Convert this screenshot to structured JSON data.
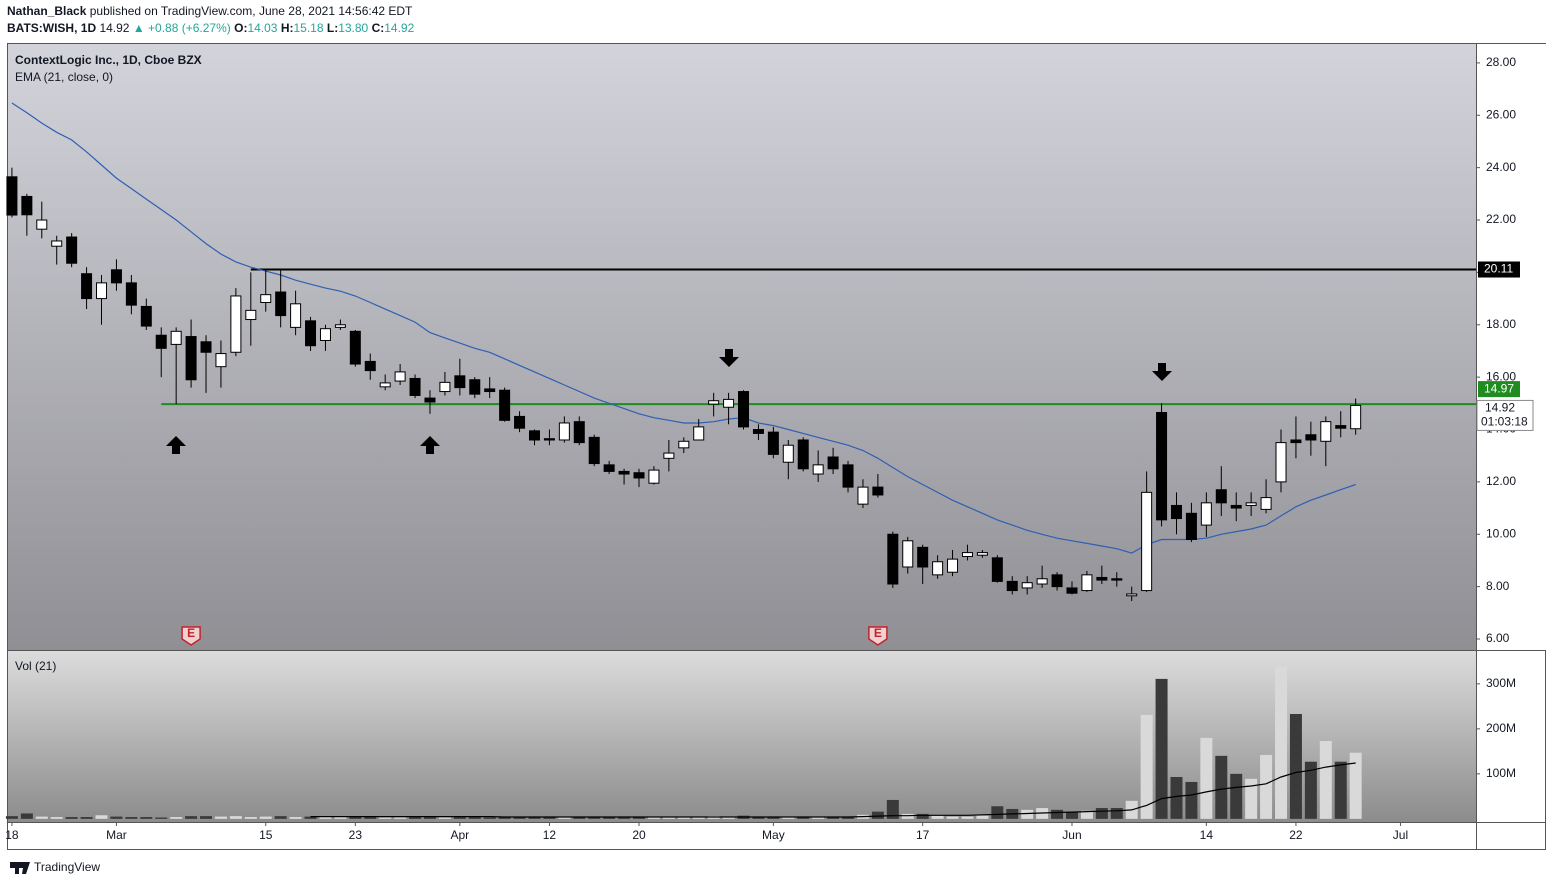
{
  "header": {
    "publisher": "Nathan_Black",
    "published": "published on TradingView.com, June 28, 2021 14:56:42 EDT",
    "symbol": "BATS:WISH, 1D",
    "last": "14.92",
    "change": "▲ +0.88 (+6.27%)",
    "ohlc": [
      {
        "label": "O:",
        "value": "14.03"
      },
      {
        "label": "H:",
        "value": "15.18"
      },
      {
        "label": "L:",
        "value": "13.80"
      },
      {
        "label": "C:",
        "value": "14.92"
      }
    ]
  },
  "chart_data": {
    "type": "candlestick",
    "title": "ContextLogic Inc., 1D, Cboe BZX",
    "indicator": "EMA (21, close, 0)",
    "volume_title": "Vol (21)",
    "xlim": [
      -0.33,
      98.06
    ],
    "xticks": [
      {
        "value": 0,
        "label": "18"
      },
      {
        "value": 7,
        "label": "Mar"
      },
      {
        "value": 17,
        "label": "15"
      },
      {
        "value": 23,
        "label": "23"
      },
      {
        "value": 30,
        "label": "Apr"
      },
      {
        "value": 36,
        "label": "12"
      },
      {
        "value": 42,
        "label": "20"
      },
      {
        "value": 51,
        "label": "May"
      },
      {
        "value": 61,
        "label": "17"
      },
      {
        "value": 71,
        "label": "Jun"
      },
      {
        "value": 80,
        "label": "14"
      },
      {
        "value": 86,
        "label": "22"
      },
      {
        "value": 93,
        "label": "Jul"
      }
    ],
    "ylim": [
      5.58,
      28.76
    ],
    "yticks": [
      {
        "value": 6,
        "label": "6.00"
      },
      {
        "value": 8,
        "label": "8.00"
      },
      {
        "value": 10,
        "label": "10.00"
      },
      {
        "value": 12,
        "label": "12.00"
      },
      {
        "value": 14,
        "label": "14.00"
      },
      {
        "value": 16,
        "label": "16.00"
      },
      {
        "value": 18,
        "label": "18.00"
      },
      {
        "value": 20,
        "label": "20.00"
      },
      {
        "value": 22,
        "label": "22.00"
      },
      {
        "value": 24,
        "label": "24.00"
      },
      {
        "value": 26,
        "label": "26.00"
      },
      {
        "value": 28,
        "label": "28.00"
      }
    ],
    "vlim": [
      -7,
      373
    ],
    "vticks": [
      {
        "value": 100,
        "label": "100M"
      },
      {
        "value": 200,
        "label": "200M"
      },
      {
        "value": 300,
        "label": "300M"
      }
    ],
    "open": [
      23.65,
      22.9,
      21.65,
      21.0,
      21.35,
      19.95,
      19.0,
      20.1,
      19.6,
      18.7,
      17.6,
      17.25,
      17.55,
      17.35,
      16.4,
      16.95,
      18.2,
      18.85,
      19.25,
      17.9,
      18.15,
      17.4,
      17.9,
      17.75,
      16.6,
      15.63,
      15.85,
      15.95,
      15.2,
      15.45,
      16.05,
      15.9,
      15.55,
      15.5,
      14.5,
      13.95,
      13.65,
      13.6,
      14.3,
      13.7,
      12.65,
      12.4,
      12.35,
      11.95,
      12.9,
      13.3,
      13.6,
      14.97,
      14.85,
      15.45,
      14.0,
      13.9,
      12.75,
      13.6,
      12.3,
      12.95,
      12.65,
      11.15,
      11.8,
      10.0,
      8.75,
      9.5,
      8.45,
      8.55,
      9.15,
      9.2,
      9.1,
      8.2,
      7.95,
      8.1,
      8.45,
      7.95,
      7.85,
      8.35,
      8.3,
      7.65,
      7.85,
      14.65,
      11.1,
      10.8,
      10.35,
      11.7,
      11.1,
      11.1,
      10.95,
      12.0,
      13.6,
      13.8,
      13.55,
      14.15,
      14.03
    ],
    "high": [
      24.0,
      23.0,
      22.7,
      21.4,
      21.5,
      20.2,
      19.9,
      20.5,
      19.9,
      19.0,
      17.9,
      17.9,
      18.2,
      17.6,
      17.4,
      19.4,
      20.0,
      20.1,
      20.1,
      19.3,
      18.3,
      18.0,
      18.2,
      17.8,
      16.9,
      16.1,
      16.5,
      16.1,
      15.5,
      16.2,
      16.7,
      16.0,
      16.0,
      15.6,
      14.7,
      14.0,
      14.0,
      14.5,
      14.5,
      13.8,
      12.8,
      12.5,
      12.5,
      12.6,
      13.6,
      13.7,
      14.4,
      15.4,
      15.4,
      15.5,
      14.2,
      14.1,
      13.6,
      13.7,
      13.2,
      13.3,
      12.8,
      12.1,
      12.3,
      10.1,
      9.9,
      9.6,
      9.2,
      9.4,
      9.6,
      9.4,
      9.2,
      8.4,
      8.4,
      8.8,
      8.55,
      8.2,
      8.6,
      8.8,
      8.55,
      8.0,
      12.4,
      15.0,
      11.6,
      11.2,
      11.6,
      12.6,
      11.6,
      11.6,
      12.1,
      14.0,
      14.5,
      14.3,
      14.5,
      14.7,
      15.18
    ],
    "low": [
      22.1,
      21.4,
      21.3,
      20.3,
      20.2,
      18.6,
      18.0,
      19.3,
      18.4,
      17.8,
      16.0,
      14.97,
      15.6,
      15.4,
      15.6,
      16.8,
      17.2,
      18.5,
      17.9,
      17.6,
      17.0,
      17.0,
      17.8,
      16.4,
      15.9,
      15.5,
      15.7,
      15.2,
      14.6,
      15.3,
      15.3,
      15.2,
      15.2,
      14.3,
      13.9,
      13.4,
      13.4,
      13.5,
      13.4,
      12.6,
      12.3,
      11.9,
      11.8,
      11.9,
      12.4,
      13.1,
      13.6,
      14.5,
      14.2,
      14.0,
      13.6,
      12.9,
      12.1,
      12.4,
      12.0,
      12.3,
      11.6,
      11.0,
      11.4,
      7.95,
      8.5,
      8.1,
      8.3,
      8.4,
      9.0,
      9.1,
      8.15,
      7.7,
      7.7,
      7.95,
      7.85,
      7.7,
      7.8,
      8.1,
      8.0,
      7.45,
      7.8,
      10.3,
      10.0,
      9.7,
      9.9,
      10.7,
      10.5,
      10.7,
      10.8,
      11.6,
      12.9,
      13.0,
      12.6,
      13.7,
      13.8
    ],
    "close": [
      22.19,
      22.2,
      22.0,
      21.2,
      20.35,
      19.0,
      19.6,
      19.6,
      18.75,
      17.95,
      17.1,
      17.75,
      15.9,
      16.95,
      16.9,
      19.1,
      18.55,
      19.15,
      18.35,
      18.8,
      17.2,
      17.85,
      18.0,
      16.5,
      16.25,
      15.78,
      16.2,
      15.3,
      15.05,
      15.8,
      15.6,
      15.35,
      15.45,
      14.35,
      14.05,
      13.6,
      13.6,
      14.25,
      13.5,
      12.7,
      12.4,
      12.3,
      12.15,
      12.45,
      13.1,
      13.55,
      14.1,
      15.1,
      15.15,
      14.1,
      13.85,
      13.05,
      13.4,
      12.5,
      12.65,
      12.5,
      11.8,
      11.8,
      11.5,
      8.1,
      9.75,
      8.75,
      8.95,
      9.05,
      9.3,
      9.3,
      8.2,
      7.85,
      8.15,
      8.3,
      8.0,
      7.75,
      8.45,
      8.25,
      8.25,
      7.72,
      11.6,
      10.55,
      10.6,
      9.8,
      11.2,
      11.2,
      11.0,
      11.2,
      11.4,
      13.5,
      13.5,
      13.6,
      14.3,
      14.05,
      14.92
    ],
    "ema": [
      26.47,
      26.1,
      25.7,
      25.35,
      25.06,
      24.6,
      24.1,
      23.6,
      23.2,
      22.8,
      22.4,
      22.0,
      21.55,
      21.1,
      20.7,
      20.4,
      20.2,
      20.05,
      19.9,
      19.7,
      19.55,
      19.4,
      19.28,
      19.1,
      18.85,
      18.6,
      18.35,
      18.1,
      17.7,
      17.5,
      17.3,
      17.1,
      16.95,
      16.7,
      16.45,
      16.2,
      15.95,
      15.7,
      15.45,
      15.2,
      15.0,
      14.8,
      14.6,
      14.45,
      14.35,
      14.25,
      14.25,
      14.3,
      14.4,
      14.45,
      14.25,
      14.15,
      14.0,
      13.85,
      13.7,
      13.55,
      13.4,
      13.2,
      12.9,
      12.55,
      12.2,
      11.9,
      11.6,
      11.3,
      11.05,
      10.8,
      10.55,
      10.35,
      10.15,
      10.0,
      9.85,
      9.75,
      9.65,
      9.55,
      9.45,
      9.28,
      9.6,
      9.8,
      9.8,
      9.8,
      9.85,
      10.0,
      10.1,
      10.2,
      10.35,
      10.7,
      11.05,
      11.3,
      11.5,
      11.7,
      11.9
    ],
    "ema_color": "#2f5fb3",
    "volume": [
      6,
      12,
      5,
      4,
      4,
      4,
      8,
      5,
      4,
      4,
      3,
      4,
      6,
      6,
      5,
      6,
      4,
      5,
      6,
      4,
      5,
      4,
      4,
      5,
      4,
      3,
      3,
      5,
      4,
      3,
      4,
      4,
      3,
      5,
      4,
      4,
      4,
      3,
      4,
      4,
      4,
      3,
      3,
      3,
      3,
      3,
      4,
      6,
      5,
      7,
      4,
      4,
      4,
      4,
      3,
      3,
      4,
      9,
      16,
      42,
      11,
      11,
      7,
      5,
      5,
      7,
      28,
      22,
      20,
      24,
      20,
      16,
      18,
      24,
      24,
      40,
      231,
      311,
      93,
      82,
      180,
      140,
      100,
      89,
      142,
      338,
      233,
      127,
      173,
      127,
      147
    ],
    "volume_ma": [
      null,
      null,
      null,
      null,
      null,
      null,
      null,
      null,
      null,
      null,
      null,
      null,
      null,
      null,
      null,
      null,
      null,
      null,
      null,
      null,
      5,
      5,
      5,
      5,
      5,
      5,
      5,
      5,
      5,
      5,
      5,
      5,
      5,
      4,
      4,
      4,
      4,
      4,
      4,
      4,
      4,
      4,
      4,
      4,
      4,
      4,
      4,
      4,
      4,
      4,
      4,
      4,
      4,
      4,
      4,
      4,
      4,
      5,
      6,
      7,
      7,
      8,
      8,
      8,
      8,
      9,
      10,
      11,
      12,
      13,
      14,
      15,
      16,
      17,
      18,
      20,
      30,
      45,
      50,
      53,
      60,
      66,
      70,
      73,
      78,
      93,
      103,
      108,
      115,
      120,
      124
    ],
    "up_volume_color": "#d9d9d9",
    "down_volume_color": "#3a3a3a",
    "levels": [
      {
        "value": 20.11,
        "start": 16,
        "color": "#000000"
      },
      {
        "value": 14.97,
        "start": 10,
        "color": "#1e8c1e"
      }
    ],
    "last_price": 14.92,
    "countdown": "01:03:18",
    "earnings": [
      {
        "index": 12,
        "label": "E"
      },
      {
        "index": 58,
        "label": "E"
      }
    ]
  },
  "footer": "TradingView"
}
